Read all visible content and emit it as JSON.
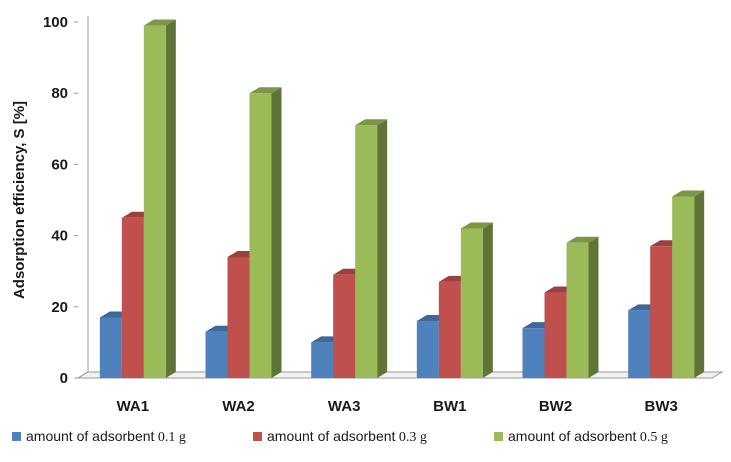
{
  "chart_data": {
    "type": "bar",
    "style": "3d-clustered-column",
    "categories": [
      "WA1",
      "WA2",
      "WA3",
      "BW1",
      "BW2",
      "BW3"
    ],
    "series": [
      {
        "name": "amount of adsorbent 0.1 g",
        "values": [
          17,
          13,
          10,
          16,
          14,
          19
        ],
        "color": "#4f81bd"
      },
      {
        "name": "amount of adsorbent 0.3 g",
        "values": [
          45,
          34,
          29,
          27,
          24,
          37
        ],
        "color": "#c0504d"
      },
      {
        "name": "amount of adsorbent 0.5 g",
        "values": [
          99,
          80,
          71,
          42,
          38,
          51
        ],
        "color": "#9bbb59"
      }
    ],
    "title": "",
    "xlabel": "",
    "ylabel": "Adsorption efficiency, S [%]",
    "ylim": [
      0,
      100
    ],
    "yticks": [
      0,
      20,
      40,
      60,
      80,
      100
    ],
    "grid": false,
    "legend_position": "bottom"
  }
}
